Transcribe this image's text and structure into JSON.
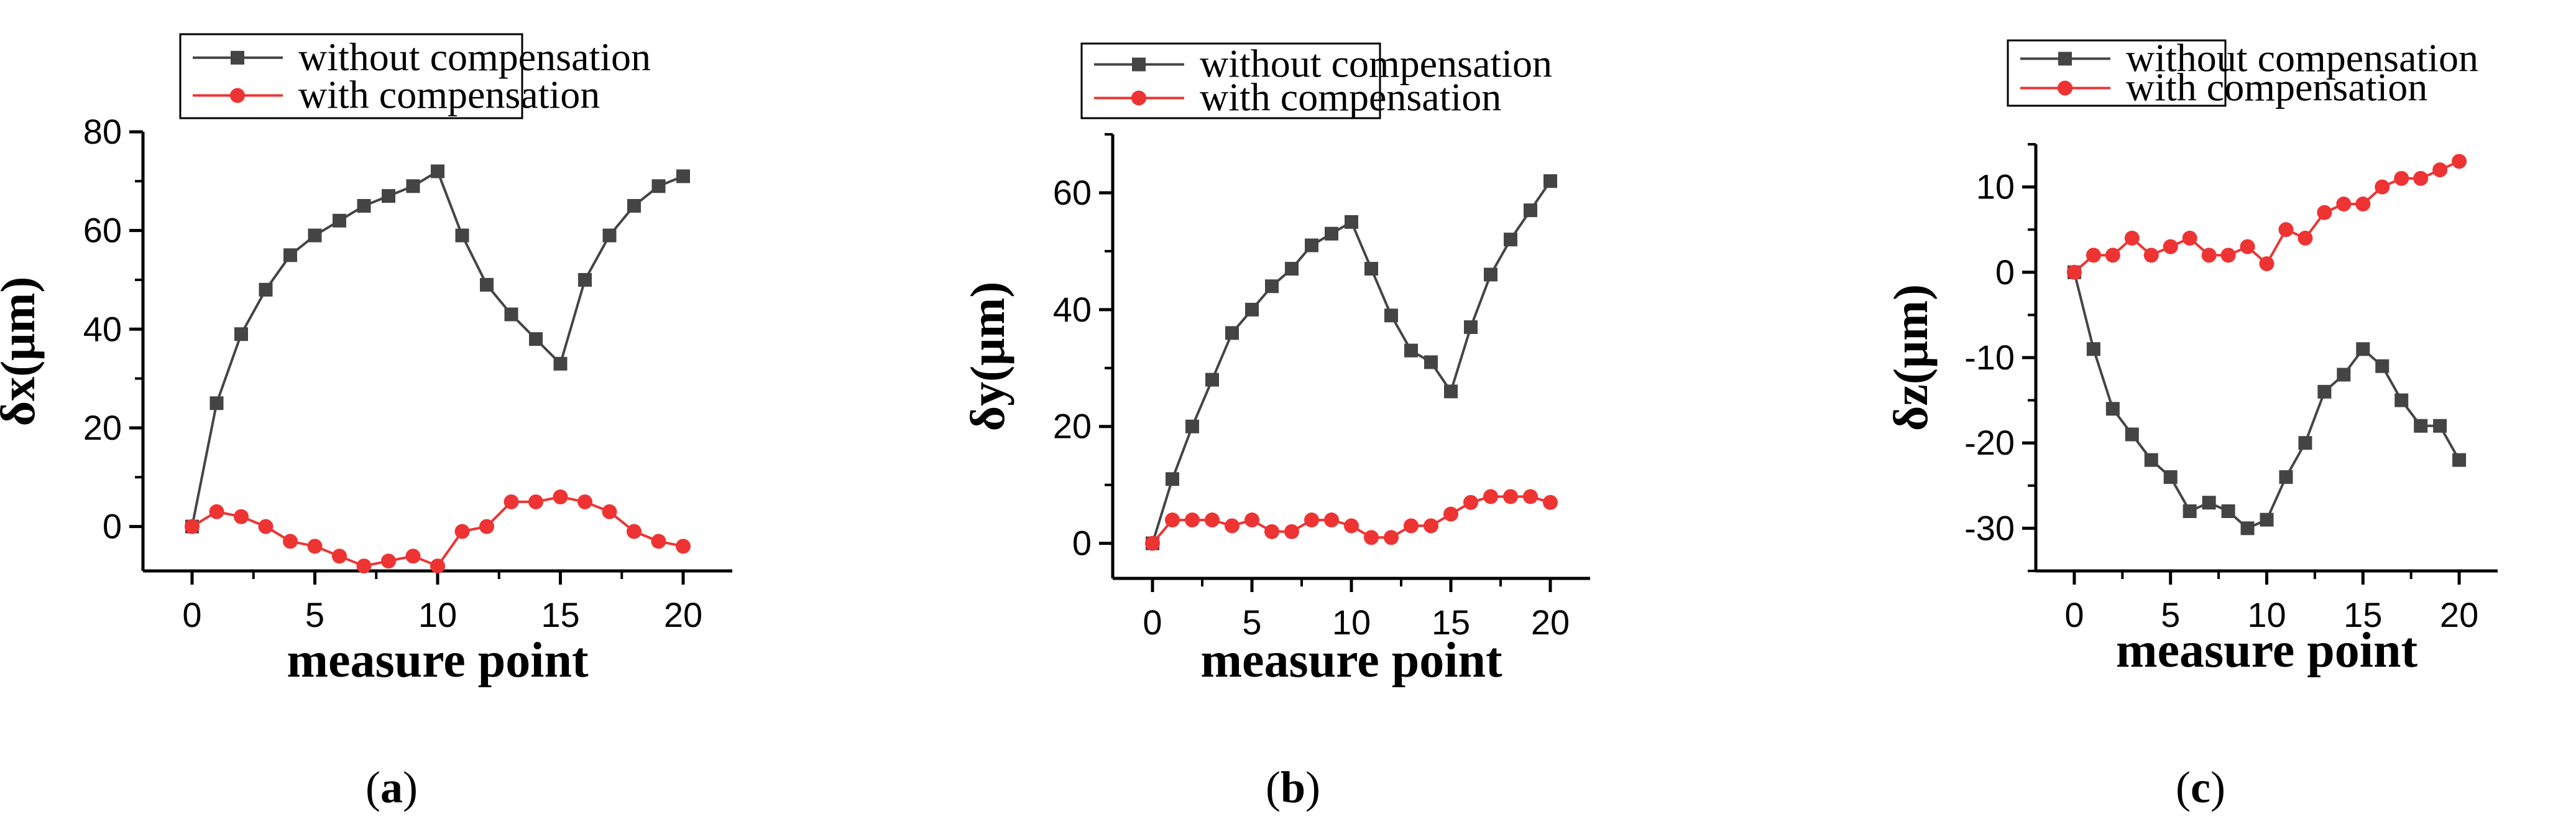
{
  "chart_data": [
    {
      "type": "line",
      "caption_letter": "a",
      "xlabel": "measure point",
      "ylabel": "δx(μm)",
      "xlim": [
        -2,
        22
      ],
      "ylim": [
        -9,
        80
      ],
      "xticks": [
        0,
        5,
        10,
        15,
        20
      ],
      "yticks": [
        0,
        20,
        40,
        60,
        80
      ],
      "legend_position": "top",
      "x": [
        0,
        1,
        2,
        3,
        4,
        5,
        6,
        7,
        8,
        9,
        10,
        11,
        12,
        13,
        14,
        15,
        16,
        17,
        18,
        19,
        20
      ],
      "series": [
        {
          "name": "without compensation",
          "color": "#444444",
          "marker": "square",
          "values": [
            0,
            25,
            39,
            48,
            55,
            59,
            62,
            65,
            67,
            69,
            72,
            59,
            49,
            43,
            38,
            33,
            50,
            59,
            65,
            69,
            71
          ]
        },
        {
          "name": "with compensation",
          "color": "#ee3333",
          "marker": "circle",
          "values": [
            0,
            3,
            2,
            0,
            -3,
            -4,
            -6,
            -8,
            -7,
            -6,
            -8,
            -1,
            0,
            5,
            5,
            6,
            5,
            3,
            -1,
            -3,
            -4
          ]
        }
      ]
    },
    {
      "type": "line",
      "caption_letter": "b",
      "xlabel": "measure point",
      "ylabel": "δy(μm)",
      "xlim": [
        -2,
        22
      ],
      "ylim": [
        -6,
        70
      ],
      "xticks": [
        0,
        5,
        10,
        15,
        20
      ],
      "yticks": [
        0,
        20,
        40,
        60
      ],
      "legend_position": "top",
      "x": [
        0,
        1,
        2,
        3,
        4,
        5,
        6,
        7,
        8,
        9,
        10,
        11,
        12,
        13,
        14,
        15,
        16,
        17,
        18,
        19,
        20
      ],
      "series": [
        {
          "name": "without compensation",
          "color": "#444444",
          "marker": "square",
          "values": [
            0,
            11,
            20,
            28,
            36,
            40,
            44,
            47,
            51,
            53,
            55,
            47,
            39,
            33,
            31,
            26,
            37,
            46,
            52,
            57,
            62
          ]
        },
        {
          "name": "with compensation",
          "color": "#ee3333",
          "marker": "circle",
          "values": [
            0,
            4,
            4,
            4,
            3,
            4,
            2,
            2,
            4,
            4,
            3,
            1,
            1,
            3,
            3,
            5,
            7,
            8,
            8,
            8,
            7
          ]
        }
      ]
    },
    {
      "type": "line",
      "caption_letter": "c",
      "xlabel": "measure point",
      "ylabel": "δz(μm)",
      "xlim": [
        -2,
        22
      ],
      "ylim": [
        -35,
        15
      ],
      "xticks": [
        0,
        5,
        10,
        15,
        20
      ],
      "yticks": [
        -30,
        -20,
        -10,
        0,
        10
      ],
      "legend_position": "top",
      "x": [
        0,
        1,
        2,
        3,
        4,
        5,
        6,
        7,
        8,
        9,
        10,
        11,
        12,
        13,
        14,
        15,
        16,
        17,
        18,
        19,
        20
      ],
      "series": [
        {
          "name": "without compensation",
          "color": "#444444",
          "marker": "square",
          "values": [
            0,
            -9,
            -16,
            -19,
            -22,
            -24,
            -28,
            -27,
            -28,
            -30,
            -29,
            -24,
            -20,
            -14,
            -12,
            -9,
            -11,
            -15,
            -18,
            -18,
            -22
          ]
        },
        {
          "name": "with compensation",
          "color": "#ee3333",
          "marker": "circle",
          "values": [
            0,
            2,
            2,
            4,
            2,
            3,
            4,
            2,
            2,
            3,
            1,
            5,
            4,
            7,
            8,
            8,
            10,
            11,
            11,
            12,
            13
          ]
        }
      ]
    }
  ]
}
